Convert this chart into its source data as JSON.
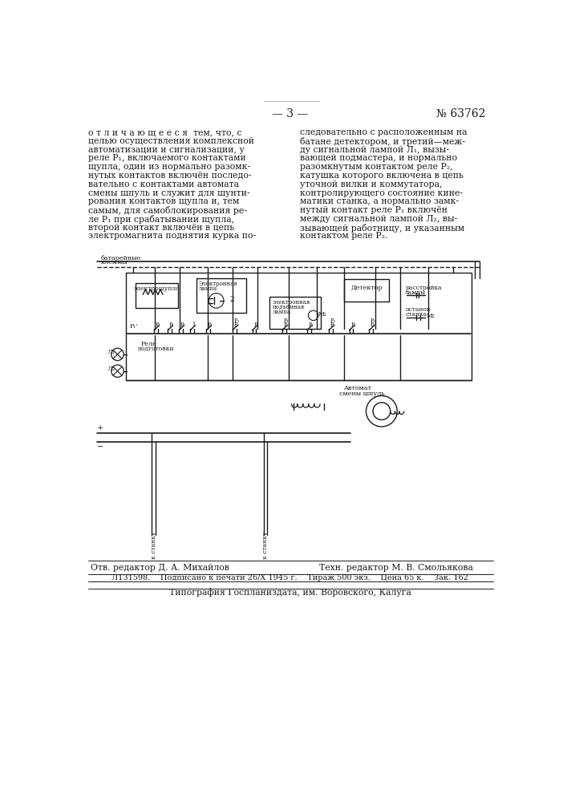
{
  "page_number": "— 3 —",
  "patent_number": "№ 63762",
  "background_color": "#ffffff",
  "text_color": "#1a1a1a",
  "left_col_text": [
    "о т л и ч а ю щ е е с я  тем, что, с",
    "целью осуществления комплексной",
    "автоматизации и сигнализации, у",
    "реле Р₁, включаемого контактами",
    "щупла, один из нормально разомк-",
    "нутых контактов включён последо-",
    "вательно с контактами автомата",
    "смены шпуль и служит для шунти-",
    "рования контактов щупла и, тем",
    "самым, для самоблокирования ре-",
    "ле Р₁ при срабатывании щупла,",
    "второй контакт включён в цепь",
    "электромагнита поднятия курка по-"
  ],
  "right_col_text": [
    "следовательно с расположенным на",
    "батане детектором, и третий—меж-",
    "ду сигнальной лампой Л₁, вызы-",
    "вающей подмастера, и нормально",
    "разомкнутым контактом реле Р₂,",
    "катушка которого включена в цепь",
    "уточной вилки и коммутатора,",
    "контролирующего состояние кине-",
    "матики станка, а нормально замк-",
    "нутый контакт реле Р₁ включён",
    "между сигнальной лампой Л₂, вы-",
    "зывающей работницу, и указанным",
    "контактом реле Р₂."
  ],
  "bottom_editor": "Отв. редактор Д. А. Михайлов",
  "bottom_tech_editor": "Техн. редактор М. В. Смольякова",
  "bottom_info1": "Л131598.    Подписано к печати 26/X 1945 г.    Тираж 500 экз.    Цена 65 к.    Зак. 162",
  "bottom_info2": "Типография Госпланиздата, им. Воровского, Калуга"
}
